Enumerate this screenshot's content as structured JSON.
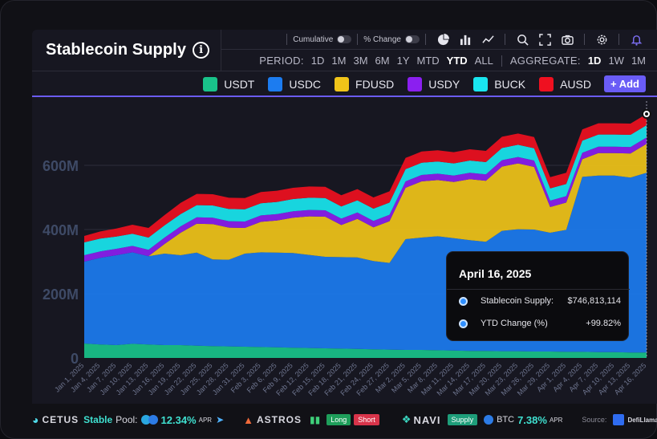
{
  "header": {
    "title": "Stablecoin Supply",
    "info_icon": "info-icon"
  },
  "toolbar": {
    "cumulative_label": "Cumulative",
    "pct_change_label": "% Change",
    "icons": [
      "pie-chart-icon",
      "bar-chart-icon",
      "line-chart-icon",
      "search-icon",
      "fullscreen-icon",
      "camera-icon",
      "settings-icon",
      "bell-icon"
    ]
  },
  "period": {
    "label": "PERIOD:",
    "options": [
      "1D",
      "1M",
      "3M",
      "6M",
      "1Y",
      "MTD",
      "YTD",
      "ALL"
    ],
    "active": "YTD",
    "aggregate_label": "AGGREGATE:",
    "aggregate_options": [
      "1D",
      "1W",
      "1M"
    ],
    "aggregate_active": "1D"
  },
  "legend": {
    "items": [
      {
        "name": "USDT",
        "color": "#19c38a"
      },
      {
        "name": "USDC",
        "color": "#1c7cf0"
      },
      {
        "name": "FDUSD",
        "color": "#f0c419"
      },
      {
        "name": "USDY",
        "color": "#8b1ff0"
      },
      {
        "name": "BUCK",
        "color": "#19e6ef"
      },
      {
        "name": "AUSD",
        "color": "#ef1020"
      }
    ],
    "add_label": "+ Add"
  },
  "chart_data": {
    "type": "area",
    "stacked": true,
    "x": [
      "Jan 1, 2025",
      "Jan 4, 2025",
      "Jan 7, 2025",
      "Jan 10, 2025",
      "Jan 13, 2025",
      "Jan 16, 2025",
      "Jan 19, 2025",
      "Jan 22, 2025",
      "Jan 25, 2025",
      "Jan 28, 2025",
      "Jan 31, 2025",
      "Feb 3, 2025",
      "Feb 6, 2025",
      "Feb 9, 2025",
      "Feb 12, 2025",
      "Feb 15, 2025",
      "Feb 18, 2025",
      "Feb 21, 2025",
      "Feb 24, 2025",
      "Feb 27, 2025",
      "Mar 2, 2025",
      "Mar 5, 2025",
      "Mar 8, 2025",
      "Mar 11, 2025",
      "Mar 14, 2025",
      "Mar 17, 2025",
      "Mar 20, 2025",
      "Mar 23, 2025",
      "Mar 26, 2025",
      "Mar 29, 2025",
      "Apr 1, 2025",
      "Apr 4, 2025",
      "Apr 7, 2025",
      "Apr 10, 2025",
      "Apr 13, 2025",
      "Apr 16, 2025"
    ],
    "y_tick_labels": [
      "0",
      "200M",
      "400M",
      "600M"
    ],
    "y_ticks": [
      0,
      200,
      400,
      600
    ],
    "ylim": [
      0,
      800
    ],
    "units": "M",
    "series": [
      {
        "name": "USDT",
        "values": [
          45,
          42,
          40,
          44,
          42,
          40,
          40,
          38,
          37,
          36,
          35,
          34,
          33,
          32,
          31,
          30,
          29,
          28,
          27,
          26,
          25,
          25,
          24,
          23,
          22,
          22,
          21,
          21,
          20,
          20,
          19,
          19,
          18,
          18,
          17,
          17
        ]
      },
      {
        "name": "USDC",
        "values": [
          255,
          270,
          280,
          285,
          275,
          285,
          280,
          290,
          270,
          270,
          290,
          295,
          295,
          295,
          290,
          285,
          285,
          285,
          275,
          270,
          345,
          350,
          355,
          350,
          345,
          340,
          375,
          380,
          380,
          370,
          380,
          545,
          550,
          550,
          545,
          560
        ]
      },
      {
        "name": "FDUSD",
        "values": [
          0,
          0,
          0,
          0,
          0,
          30,
          70,
          90,
          110,
          100,
          80,
          95,
          100,
          110,
          120,
          125,
          100,
          120,
          105,
          130,
          160,
          175,
          175,
          175,
          190,
          190,
          200,
          205,
          195,
          80,
          85,
          55,
          70,
          70,
          75,
          90
        ]
      },
      {
        "name": "USDY",
        "values": [
          20,
          20,
          20,
          20,
          20,
          20,
          20,
          20,
          20,
          20,
          20,
          20,
          20,
          20,
          20,
          20,
          20,
          20,
          20,
          20,
          20,
          20,
          20,
          20,
          20,
          20,
          20,
          20,
          20,
          20,
          20,
          20,
          20,
          20,
          20,
          20
        ]
      },
      {
        "name": "BUCK",
        "values": [
          40,
          40,
          38,
          38,
          38,
          38,
          38,
          38,
          38,
          38,
          38,
          38,
          38,
          38,
          38,
          38,
          38,
          38,
          38,
          38,
          38,
          38,
          38,
          38,
          38,
          38,
          38,
          38,
          38,
          38,
          38,
          38,
          38,
          38,
          38,
          38
        ]
      },
      {
        "name": "AUSD",
        "values": [
          20,
          22,
          25,
          28,
          30,
          32,
          35,
          35,
          35,
          35,
          35,
          35,
          35,
          35,
          35,
          35,
          35,
          35,
          35,
          35,
          35,
          35,
          35,
          35,
          35,
          35,
          35,
          35,
          35,
          35,
          35,
          35,
          35,
          35,
          35,
          35
        ]
      }
    ]
  },
  "tooltip": {
    "date": "April 16, 2025",
    "rows": [
      {
        "label": "Stablecoin Supply:",
        "value": "$746,813,114"
      },
      {
        "label": "YTD Change (%)",
        "value": "+99.82%"
      }
    ]
  },
  "sponsors": {
    "cetus": {
      "name": "CETUS",
      "stable_label": "Stable",
      "pool_label": "Pool:",
      "apr_value": "12.34%",
      "apr_label": "APR"
    },
    "astros": {
      "name": "ASTROS",
      "long_label": "Long",
      "short_label": "Short"
    },
    "navi": {
      "name": "NAVI",
      "supply_label": "Supply",
      "asset": "BTC",
      "apr_value": "7.38%",
      "apr_label": "APR"
    },
    "source_label": "Source:",
    "source_name": "DefiLlama"
  }
}
